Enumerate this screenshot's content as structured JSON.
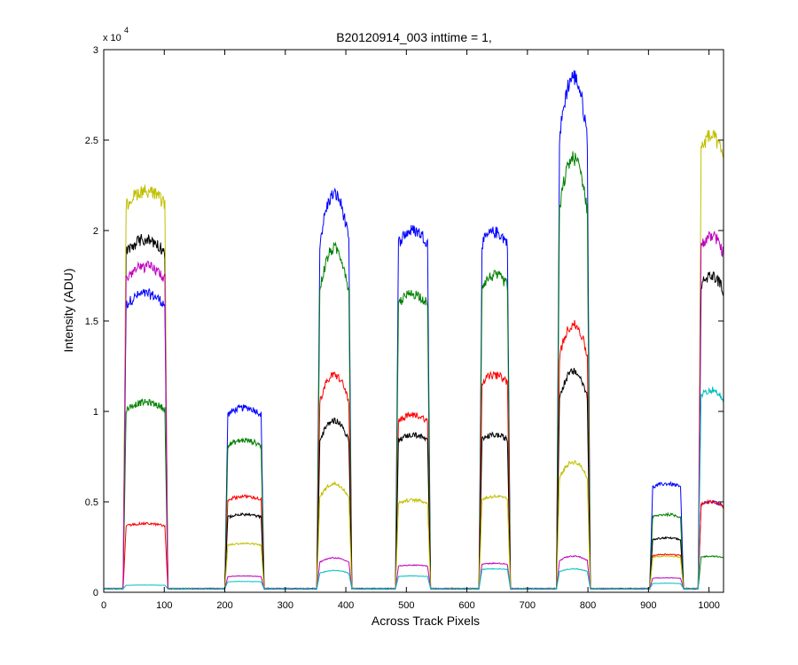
{
  "chart_data": {
    "type": "line",
    "title": "B20120914_003 inttime = 1,",
    "xlabel": "Across Track Pixels",
    "ylabel": "Intensity (ADU)",
    "y_exponent": "x 10",
    "y_exponent_power": "4",
    "xlim": [
      0,
      1024
    ],
    "ylim": [
      0,
      3
    ],
    "xticks": [
      "0",
      "100",
      "200",
      "300",
      "400",
      "500",
      "600",
      "700",
      "800",
      "900",
      "1000"
    ],
    "yticks": [
      "0",
      "0.5",
      "1",
      "1.5",
      "2",
      "2.5",
      "3"
    ],
    "grid": false,
    "plateaus": [
      {
        "x0": 32,
        "x1": 106
      },
      {
        "x0": 200,
        "x1": 265
      },
      {
        "x0": 352,
        "x1": 410
      },
      {
        "x0": 482,
        "x1": 540
      },
      {
        "x0": 620,
        "x1": 672
      },
      {
        "x0": 748,
        "x1": 804
      },
      {
        "x0": 902,
        "x1": 958
      },
      {
        "x0": 982,
        "x1": 1024
      }
    ],
    "series": [
      {
        "color": "#0000ff",
        "levels": [
          1.65,
          1.02,
          2.2,
          2.0,
          1.99,
          2.85,
          0.6,
          0.5
        ],
        "peaked": [
          false,
          false,
          true,
          false,
          false,
          true,
          false,
          false
        ]
      },
      {
        "color": "#008000",
        "levels": [
          1.05,
          0.84,
          1.9,
          1.65,
          1.75,
          2.4,
          0.43,
          0.2
        ],
        "peaked": [
          false,
          false,
          true,
          false,
          false,
          true,
          false,
          false
        ]
      },
      {
        "color": "#ff0000",
        "levels": [
          0.38,
          0.53,
          1.2,
          0.98,
          1.2,
          1.48,
          0.21,
          0.5
        ],
        "peaked": [
          false,
          false,
          true,
          false,
          false,
          true,
          false,
          false
        ]
      },
      {
        "color": "#000000",
        "levels": [
          1.95,
          0.43,
          0.95,
          0.87,
          0.87,
          1.22,
          0.3,
          1.75
        ],
        "peaked": [
          false,
          false,
          true,
          false,
          false,
          true,
          false,
          false
        ]
      },
      {
        "color": "#c0c000",
        "levels": [
          2.22,
          0.27,
          0.6,
          0.51,
          0.53,
          0.72,
          0.2,
          2.52
        ],
        "peaked": [
          false,
          false,
          true,
          false,
          false,
          true,
          false,
          false
        ]
      },
      {
        "color": "#bf00bf",
        "levels": [
          1.8,
          0.09,
          0.19,
          0.15,
          0.16,
          0.2,
          0.08,
          1.97
        ],
        "peaked": [
          false,
          false,
          true,
          false,
          false,
          true,
          false,
          false
        ]
      },
      {
        "color": "#00bfbf",
        "levels": [
          0.04,
          0.06,
          0.12,
          0.09,
          0.13,
          0.13,
          0.05,
          1.12
        ],
        "peaked": [
          false,
          false,
          true,
          false,
          false,
          true,
          false,
          false
        ]
      }
    ],
    "baseline": 0.02
  }
}
